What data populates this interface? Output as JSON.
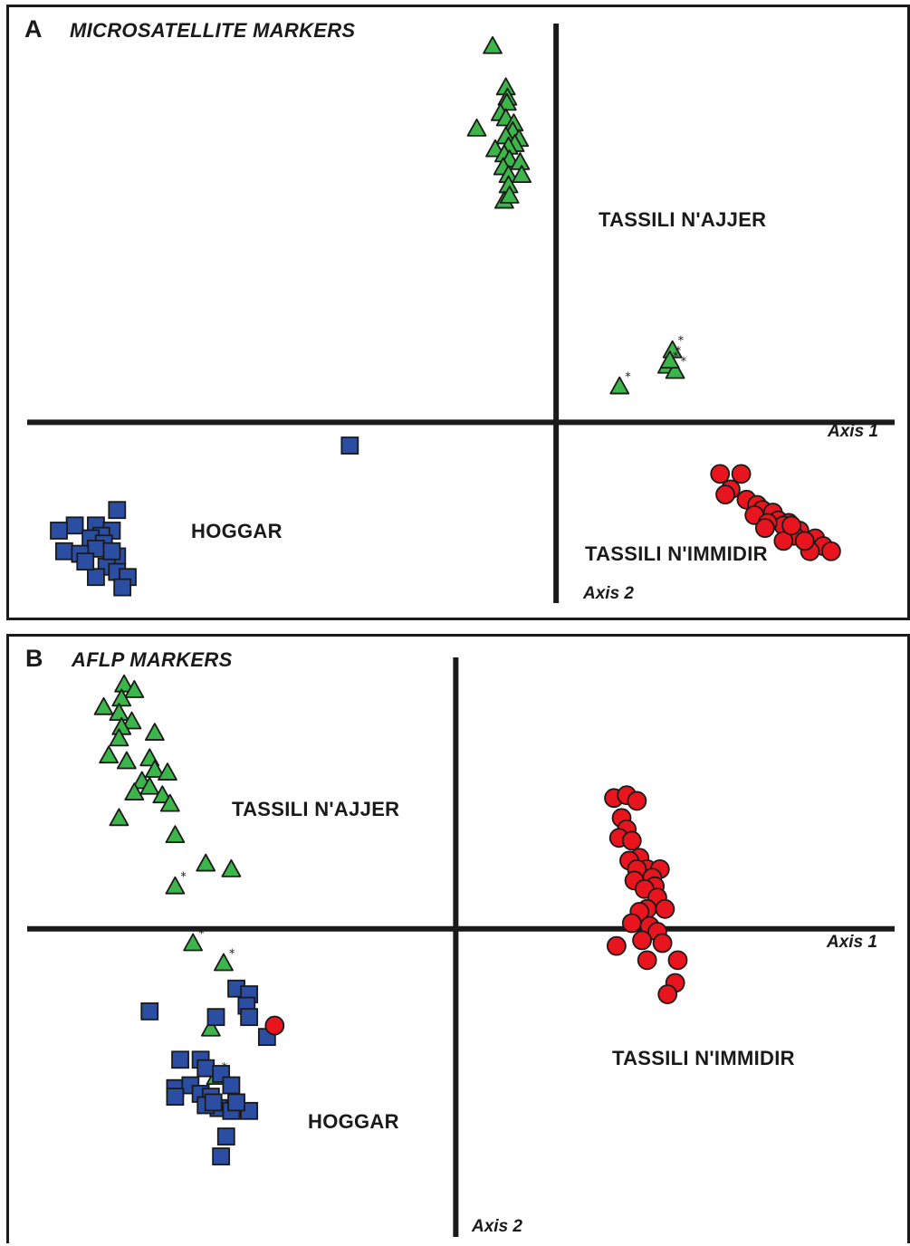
{
  "colors": {
    "ajjer": "#3cb54a",
    "immidir": "#e8141e",
    "hoggar": "#2b4ea2",
    "outline": "#1a1a1a",
    "axis": "#1a1a1a"
  },
  "icons": {
    "ajjer": "triangle-marker",
    "immidir": "circle-marker",
    "hoggar": "square-marker"
  },
  "chart_data": [
    {
      "panel": "A",
      "type": "scatter",
      "title": "MICROSATELLITE MARKERS",
      "xlabel": "Axis 1",
      "ylabel": "Axis 2",
      "xlim": [
        -10,
        6.4
      ],
      "ylim": [
        -3.4,
        7.7
      ],
      "grid": false,
      "legend": "none",
      "group_labels": {
        "ajjer": "TASSILI N'AJJER",
        "hoggar": "HOGGAR",
        "immidir": "TASSILI N'IMMIDIR"
      },
      "series": [
        {
          "group": "ajjer",
          "marker": "triangle",
          "points": [
            [
              -1.2,
              7.3
            ],
            [
              -0.95,
              6.5
            ],
            [
              -0.92,
              6.3
            ],
            [
              -0.93,
              6.2
            ],
            [
              -1.05,
              6.0
            ],
            [
              -0.95,
              5.9
            ],
            [
              -0.8,
              5.8
            ],
            [
              -1.5,
              5.7
            ],
            [
              -0.82,
              5.65
            ],
            [
              -0.95,
              5.55
            ],
            [
              -0.7,
              5.5
            ],
            [
              -0.78,
              5.4
            ],
            [
              -0.9,
              5.35
            ],
            [
              -1.15,
              5.3
            ],
            [
              -0.98,
              5.2
            ],
            [
              -0.88,
              5.1
            ],
            [
              -0.68,
              5.05
            ],
            [
              -1.0,
              4.95
            ],
            [
              -0.9,
              4.8
            ],
            [
              -0.65,
              4.8
            ],
            [
              -0.9,
              4.6
            ],
            [
              -0.98,
              4.3
            ],
            [
              -0.88,
              4.4
            ]
          ]
        },
        {
          "group": "ajjer",
          "marker": "triangle",
          "starred": true,
          "points": [
            [
              2.2,
              1.4
            ],
            [
              2.1,
              1.1
            ],
            [
              2.25,
              1.0
            ],
            [
              2.15,
              1.2
            ],
            [
              1.2,
              0.7
            ]
          ]
        },
        {
          "group": "hoggar",
          "marker": "square",
          "points": [
            [
              -3.9,
              -0.45
            ],
            [
              -8.3,
              -1.7
            ],
            [
              -8.7,
              -2.0
            ],
            [
              -9.1,
              -2.0
            ],
            [
              -8.4,
              -2.1
            ],
            [
              -8.6,
              -2.2
            ],
            [
              -8.8,
              -2.25
            ],
            [
              -8.55,
              -2.35
            ],
            [
              -8.7,
              -2.45
            ],
            [
              -9.4,
              -2.1
            ],
            [
              -8.3,
              -2.6
            ],
            [
              -9.3,
              -2.5
            ],
            [
              -9.0,
              -2.55
            ],
            [
              -8.5,
              -2.8
            ],
            [
              -8.3,
              -2.9
            ],
            [
              -8.1,
              -3.0
            ],
            [
              -8.2,
              -3.2
            ],
            [
              -8.7,
              -3.0
            ],
            [
              -8.9,
              -2.7
            ],
            [
              -8.4,
              -2.5
            ]
          ]
        },
        {
          "group": "immidir",
          "marker": "circle",
          "points": [
            [
              3.1,
              -1.0
            ],
            [
              3.5,
              -1.0
            ],
            [
              3.3,
              -1.3
            ],
            [
              3.2,
              -1.4
            ],
            [
              3.6,
              -1.5
            ],
            [
              3.8,
              -1.6
            ],
            [
              3.9,
              -1.7
            ],
            [
              4.1,
              -1.75
            ],
            [
              3.75,
              -1.8
            ],
            [
              4.2,
              -1.9
            ],
            [
              4.4,
              -1.95
            ],
            [
              4.3,
              -2.0
            ],
            [
              4.0,
              -1.95
            ],
            [
              4.6,
              -2.1
            ],
            [
              4.5,
              -2.2
            ],
            [
              4.9,
              -2.25
            ],
            [
              4.3,
              -2.3
            ],
            [
              5.05,
              -2.4
            ],
            [
              5.2,
              -2.5
            ],
            [
              4.8,
              -2.5
            ],
            [
              4.45,
              -2.0
            ],
            [
              3.95,
              -2.05
            ],
            [
              4.7,
              -2.3
            ]
          ]
        }
      ]
    },
    {
      "panel": "B",
      "type": "scatter",
      "title": "AFLP MARKERS",
      "xlabel": "Axis 1",
      "ylabel": "Axis 2",
      "xlim": [
        -8.4,
        8.6
      ],
      "ylim": [
        -5.4,
        4.9
      ],
      "grid": false,
      "legend": "none",
      "group_labels": {
        "ajjer": "TASSILI N'AJJER",
        "hoggar": "HOGGAR",
        "immidir": "TASSILI N'IMMIDIR"
      },
      "series": [
        {
          "group": "ajjer",
          "marker": "triangle",
          "points": [
            [
              -6.5,
              4.3
            ],
            [
              -6.3,
              4.2
            ],
            [
              -6.55,
              4.05
            ],
            [
              -6.9,
              3.9
            ],
            [
              -6.6,
              3.8
            ],
            [
              -6.35,
              3.65
            ],
            [
              -6.55,
              3.55
            ],
            [
              -5.9,
              3.45
            ],
            [
              -6.6,
              3.35
            ],
            [
              -6.0,
              3.0
            ],
            [
              -6.8,
              3.05
            ],
            [
              -6.45,
              2.95
            ],
            [
              -5.9,
              2.8
            ],
            [
              -6.15,
              2.6
            ],
            [
              -5.65,
              2.75
            ],
            [
              -6.0,
              2.5
            ],
            [
              -6.3,
              2.4
            ],
            [
              -5.75,
              2.35
            ],
            [
              -5.6,
              2.2
            ],
            [
              -6.6,
              1.95
            ],
            [
              -5.5,
              1.65
            ],
            [
              -4.9,
              1.15
            ],
            [
              -4.4,
              1.05
            ]
          ]
        },
        {
          "group": "ajjer",
          "marker": "triangle",
          "starred": true,
          "points": [
            [
              -5.5,
              0.75
            ],
            [
              -5.15,
              -0.25
            ],
            [
              -4.55,
              -0.6
            ],
            [
              -4.8,
              -1.75
            ],
            [
              -4.7,
              -2.6
            ]
          ]
        },
        {
          "group": "hoggar",
          "marker": "square",
          "points": [
            [
              -4.3,
              -1.05
            ],
            [
              -4.05,
              -1.15
            ],
            [
              -4.1,
              -1.35
            ],
            [
              -6.0,
              -1.45
            ],
            [
              -4.7,
              -1.55
            ],
            [
              -4.05,
              -1.55
            ],
            [
              -3.7,
              -1.9
            ],
            [
              -5.0,
              -2.3
            ],
            [
              -4.9,
              -2.45
            ],
            [
              -5.4,
              -2.3
            ],
            [
              -4.6,
              -2.55
            ],
            [
              -5.5,
              -2.8
            ],
            [
              -5.2,
              -2.75
            ],
            [
              -4.4,
              -2.75
            ],
            [
              -5.0,
              -2.9
            ],
            [
              -4.8,
              -2.95
            ],
            [
              -5.5,
              -2.95
            ],
            [
              -4.65,
              -3.15
            ],
            [
              -4.9,
              -3.1
            ],
            [
              -4.3,
              -3.15
            ],
            [
              -4.4,
              -3.2
            ],
            [
              -4.05,
              -3.2
            ],
            [
              -4.75,
              -3.05
            ],
            [
              -4.3,
              -3.05
            ],
            [
              -4.5,
              -3.65
            ],
            [
              -4.6,
              -4.0
            ]
          ]
        },
        {
          "group": "immidir",
          "marker": "circle",
          "points": [
            [
              -3.55,
              -1.7
            ],
            [
              3.1,
              2.3
            ],
            [
              3.35,
              2.35
            ],
            [
              3.55,
              2.25
            ],
            [
              3.25,
              1.95
            ],
            [
              3.35,
              1.75
            ],
            [
              3.2,
              1.6
            ],
            [
              3.45,
              1.55
            ],
            [
              3.6,
              1.25
            ],
            [
              3.4,
              1.2
            ],
            [
              3.75,
              1.05
            ],
            [
              4.0,
              1.05
            ],
            [
              3.55,
              1.05
            ],
            [
              3.85,
              0.9
            ],
            [
              3.5,
              0.85
            ],
            [
              3.9,
              0.75
            ],
            [
              3.7,
              0.7
            ],
            [
              3.95,
              0.55
            ],
            [
              3.75,
              0.35
            ],
            [
              4.1,
              0.35
            ],
            [
              3.6,
              0.3
            ],
            [
              3.45,
              0.1
            ],
            [
              3.8,
              0.05
            ],
            [
              3.95,
              -0.05
            ],
            [
              3.65,
              -0.2
            ],
            [
              3.15,
              -0.3
            ],
            [
              4.05,
              -0.25
            ],
            [
              3.75,
              -0.55
            ],
            [
              4.35,
              -0.55
            ],
            [
              4.3,
              -0.95
            ],
            [
              4.15,
              -1.15
            ]
          ]
        }
      ]
    }
  ],
  "panels": {
    "a": {
      "letter": "A",
      "title": "MICROSATELLITE MARKERS",
      "labels": {
        "ajjer": "TASSILI N'AJJER",
        "hoggar": "HOGGAR",
        "immidir": "TASSILI N'IMMIDIR",
        "axis1": "Axis 1",
        "axis2": "Axis 2"
      }
    },
    "b": {
      "letter": "B",
      "title": "AFLP MARKERS",
      "labels": {
        "ajjer": "TASSILI N'AJJER",
        "hoggar": "HOGGAR",
        "immidir": "TASSILI N'IMMIDIR",
        "axis1": "Axis 1",
        "axis2": "Axis 2"
      }
    },
    "star_symbol": "*"
  }
}
